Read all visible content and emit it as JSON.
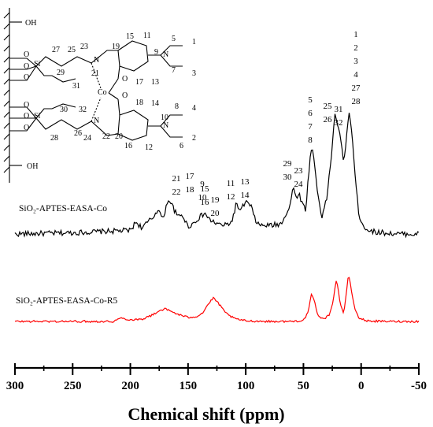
{
  "chart_data": {
    "type": "line",
    "xlabel": "Chemical shift (ppm)",
    "ylabel": "",
    "xlim": [
      300,
      -50
    ],
    "x_reversed": true,
    "xticks": [
      300,
      250,
      200,
      150,
      100,
      50,
      0,
      -50
    ],
    "xtick_labels": [
      "300",
      "250",
      "200",
      "150",
      "100",
      "50",
      "0",
      "-50"
    ],
    "grid": false,
    "y_axis_shown": false,
    "series": [
      {
        "name": "SiO₂-APTES-EASA-Co",
        "color": "#000000",
        "noise": 0.022,
        "points": [
          [
            300,
            0.0
          ],
          [
            250,
            0.01
          ],
          [
            200,
            0.03
          ],
          [
            195,
            0.1
          ],
          [
            190,
            0.05
          ],
          [
            180,
            0.14
          ],
          [
            176,
            0.21
          ],
          [
            172,
            0.12
          ],
          [
            167,
            0.29
          ],
          [
            164,
            0.24
          ],
          [
            159,
            0.14
          ],
          [
            155,
            0.16
          ],
          [
            150,
            0.06
          ],
          [
            145,
            0.09
          ],
          [
            140,
            0.14
          ],
          [
            135,
            0.17
          ],
          [
            132,
            0.12
          ],
          [
            128,
            0.1
          ],
          [
            124,
            0.08
          ],
          [
            118,
            0.07
          ],
          [
            112,
            0.1
          ],
          [
            108,
            0.26
          ],
          [
            105,
            0.18
          ],
          [
            100,
            0.27
          ],
          [
            95,
            0.22
          ],
          [
            92,
            0.12
          ],
          [
            88,
            0.07
          ],
          [
            80,
            0.07
          ],
          [
            70,
            0.08
          ],
          [
            62,
            0.22
          ],
          [
            59,
            0.38
          ],
          [
            56,
            0.3
          ],
          [
            54,
            0.34
          ],
          [
            51,
            0.25
          ],
          [
            48,
            0.2
          ],
          [
            45,
            0.55
          ],
          [
            43,
            0.72
          ],
          [
            41,
            0.63
          ],
          [
            38,
            0.36
          ],
          [
            34,
            0.14
          ],
          [
            30,
            0.28
          ],
          [
            26,
            0.62
          ],
          [
            23,
            0.98
          ],
          [
            20,
            0.9
          ],
          [
            17,
            0.72
          ],
          [
            15,
            0.58
          ],
          [
            12,
            0.88
          ],
          [
            10,
            1.0
          ],
          [
            8,
            0.84
          ],
          [
            5,
            0.45
          ],
          [
            2,
            0.16
          ],
          [
            -3,
            0.05
          ],
          [
            -10,
            0.02
          ],
          [
            -30,
            0.0
          ],
          [
            -50,
            0.0
          ]
        ]
      },
      {
        "name": "SiO₂-APTES-EASA-Co-R5",
        "color": "#ff0000",
        "noise": 0.018,
        "points": [
          [
            300,
            0.0
          ],
          [
            250,
            0.0
          ],
          [
            215,
            0.0
          ],
          [
            208,
            0.06
          ],
          [
            200,
            0.03
          ],
          [
            190,
            0.04
          ],
          [
            180,
            0.12
          ],
          [
            175,
            0.19
          ],
          [
            170,
            0.22
          ],
          [
            165,
            0.18
          ],
          [
            158,
            0.12
          ],
          [
            150,
            0.07
          ],
          [
            142,
            0.09
          ],
          [
            137,
            0.16
          ],
          [
            132,
            0.32
          ],
          [
            128,
            0.41
          ],
          [
            124,
            0.33
          ],
          [
            118,
            0.16
          ],
          [
            110,
            0.05
          ],
          [
            100,
            0.01
          ],
          [
            80,
            0.0
          ],
          [
            60,
            0.0
          ],
          [
            50,
            0.02
          ],
          [
            46,
            0.15
          ],
          [
            43,
            0.48
          ],
          [
            41,
            0.4
          ],
          [
            38,
            0.13
          ],
          [
            33,
            0.04
          ],
          [
            28,
            0.1
          ],
          [
            24,
            0.38
          ],
          [
            22,
            0.72
          ],
          [
            20,
            0.6
          ],
          [
            18,
            0.3
          ],
          [
            15,
            0.14
          ],
          [
            13,
            0.48
          ],
          [
            11,
            0.82
          ],
          [
            9,
            0.62
          ],
          [
            6,
            0.26
          ],
          [
            2,
            0.06
          ],
          [
            -5,
            0.01
          ],
          [
            -20,
            0.0
          ],
          [
            -50,
            0.0
          ]
        ]
      }
    ],
    "peak_annotations": [
      {
        "lines": [
          "1",
          "2",
          "3",
          "4",
          "27",
          "28"
        ],
        "x": 8
      },
      {
        "lines": [
          "25",
          "26"
        ],
        "x": 22
      },
      {
        "lines": [
          "31",
          "32"
        ],
        "x": 17
      },
      {
        "lines": [
          "5",
          "6",
          "7",
          "8"
        ],
        "x": 43
      },
      {
        "lines": [
          "29",
          "30"
        ],
        "x": 62
      },
      {
        "lines": [
          "23",
          "24"
        ],
        "x": 56
      },
      {
        "lines": [
          "11",
          "12"
        ],
        "x": 108
      },
      {
        "lines": [
          "13",
          "14"
        ],
        "x": 99
      },
      {
        "lines": [
          "15",
          "16"
        ],
        "x": 137
      },
      {
        "lines": [
          "19",
          "20"
        ],
        "x": 129
      },
      {
        "lines": [
          "21",
          "22"
        ],
        "x": 176
      },
      {
        "lines": [
          "17",
          "18"
        ],
        "x": 166
      },
      {
        "lines": [
          "9",
          "10"
        ],
        "x": 157
      }
    ]
  },
  "structure_labels": [
    "OH",
    "27",
    "25",
    "23",
    "29",
    "31",
    "32",
    "30",
    "26",
    "24",
    "28",
    "OH",
    "15",
    "11",
    "9",
    "5",
    "1",
    "19",
    "21",
    "17",
    "13",
    "7",
    "3",
    "Co",
    "18",
    "14",
    "10",
    "8",
    "4",
    "20",
    "22",
    "16",
    "12",
    "6",
    "2",
    "Si",
    "Si",
    "O",
    "O",
    "O",
    "O",
    "O",
    "O",
    "O",
    "O",
    "N",
    "N",
    "N",
    "N"
  ]
}
